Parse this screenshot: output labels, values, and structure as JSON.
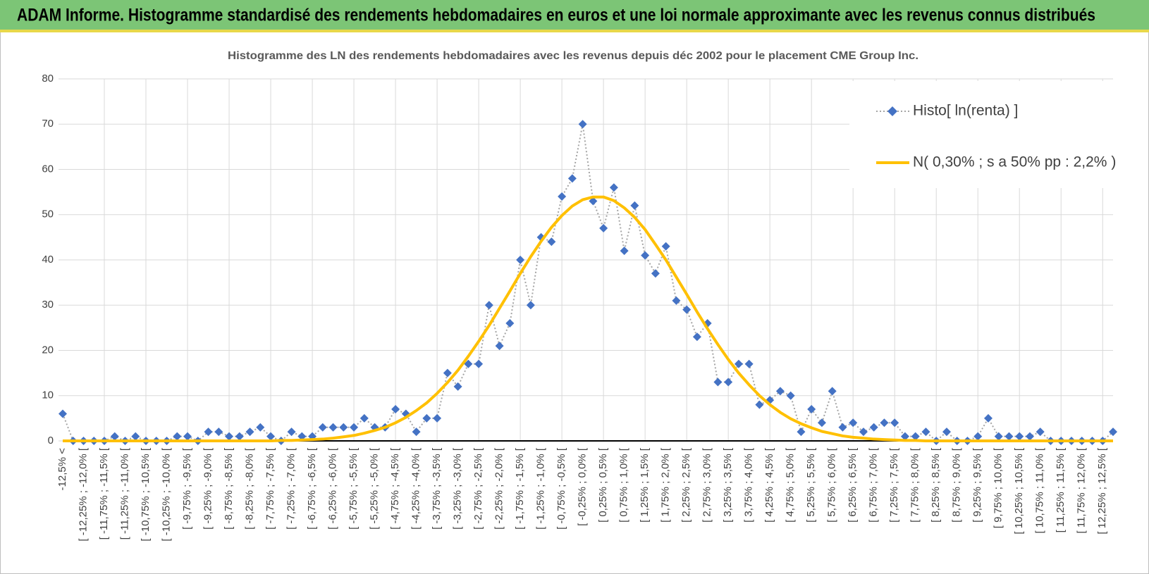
{
  "header": {
    "title": "ADAM Informe. Histogramme standardisé des rendements hebdomadaires en euros et une loi normale approximante avec les revenus connus distribués"
  },
  "chart_data": {
    "type": "line",
    "title": "Histogramme des LN des rendements hebdomadaires avec les revenus depuis déc 2002 pour le placement CME Group Inc.",
    "categories": [
      "-12,5% <",
      null,
      "[ -12,25% ; -12,0% [",
      null,
      "[ -11,75% ; -11,5% [",
      null,
      "[ -11,25% ; -11,0% [",
      null,
      "[ -10,75% ; -10,5% [",
      null,
      "[ -10,25% ; -10,0% [",
      null,
      "[ -9,75% ; -9,5% [",
      null,
      "[ -9,25% ; -9,0% [",
      null,
      "[ -8,75% ; -8,5% [",
      null,
      "[ -8,25% ; -8,0% [",
      null,
      "[ -7,75% ; -7,5% [",
      null,
      "[ -7,25% ; -7,0% [",
      null,
      "[ -6,75% ; -6,5% [",
      null,
      "[ -6,25% ; -6,0% [",
      null,
      "[ -5,75% ; -5,5% [",
      null,
      "[ -5,25% ; -5,0% [",
      null,
      "[ -4,75% ; -4,5% [",
      null,
      "[ -4,25% ; -4,0% [",
      null,
      "[ -3,75% ; -3,5% [",
      null,
      "[ -3,25% ; -3,0% [",
      null,
      "[ -2,75% ; -2,5% [",
      null,
      "[ -2,25% ; -2,0% [",
      null,
      "[ -1,75% ; -1,5% [",
      null,
      "[ -1,25% ; -1,0% [",
      null,
      "[ -0,75% ; -0,5% [",
      null,
      "[ -0,25% ; 0,0% [",
      null,
      "[ 0,25% ; 0,5% [",
      null,
      "[ 0,75% ; 1,0% [",
      null,
      "[ 1,25% ; 1,5% [",
      null,
      "[ 1,75% ; 2,0% [",
      null,
      "[ 2,25% ; 2,5% [",
      null,
      "[ 2,75% ; 3,0% [",
      null,
      "[ 3,25% ; 3,5% [",
      null,
      "[ 3,75% ; 4,0% [",
      null,
      "[ 4,25% ; 4,5% [",
      null,
      "[ 4,75% ; 5,0% [",
      null,
      "[ 5,25% ; 5,5% [",
      null,
      "[ 5,75% ; 6,0% [",
      null,
      "[ 6,25% ; 6,5% [",
      null,
      "[ 6,75% ; 7,0% [",
      null,
      "[ 7,25% ; 7,5% [",
      null,
      "[ 7,75% ; 8,0% [",
      null,
      "[ 8,25% ; 8,5% [",
      null,
      "[ 8,75% ; 9,0% [",
      null,
      "[ 9,25% ; 9,5% [",
      null,
      "[ 9,75% ; 10,0% [",
      null,
      "[ 10,25% ; 10,5% [",
      null,
      "[ 10,75% ; 11,0% [",
      null,
      "[ 11,25% ; 11,5% [",
      null,
      "[ 11,75% ; 12,0% [",
      null,
      "[ 12,25% ; 12,5% [",
      null
    ],
    "series": [
      {
        "name": "Histo[ ln(renta) ]",
        "color": "#4472c4",
        "line_color": "#a5a5a5",
        "line_style": "dotted",
        "marker": "diamond",
        "values": [
          6,
          0,
          0,
          0,
          0,
          1,
          0,
          1,
          0,
          0,
          0,
          1,
          1,
          0,
          2,
          2,
          1,
          1,
          2,
          3,
          1,
          0,
          2,
          1,
          1,
          3,
          3,
          3,
          3,
          5,
          3,
          3,
          7,
          6,
          2,
          5,
          5,
          15,
          12,
          17,
          17,
          30,
          21,
          26,
          40,
          30,
          45,
          44,
          54,
          58,
          70,
          53,
          47,
          56,
          42,
          52,
          41,
          37,
          43,
          31,
          29,
          23,
          26,
          13,
          13,
          17,
          17,
          8,
          9,
          11,
          10,
          2,
          7,
          4,
          11,
          3,
          4,
          2,
          3,
          4,
          4,
          1,
          1,
          2,
          0,
          2,
          0,
          0,
          1,
          5,
          1,
          1,
          1,
          1,
          2,
          0,
          0,
          0,
          0,
          0,
          0,
          2
        ]
      },
      {
        "name": "N( 0,30% ; s a 50% pp : 2,2% )",
        "color": "#ffc000",
        "line_style": "solid",
        "marker": "none",
        "values": [
          0,
          0,
          0,
          0,
          0,
          0,
          0,
          0,
          0,
          0,
          0,
          0,
          0,
          0,
          0,
          0,
          0,
          0,
          0,
          0,
          0,
          0.1,
          0.1,
          0.2,
          0.3,
          0.4,
          0.6,
          0.9,
          1.2,
          1.7,
          2.3,
          3.0,
          4.0,
          5.2,
          6.7,
          8.4,
          10.5,
          12.9,
          15.6,
          18.7,
          22.0,
          25.5,
          29.3,
          33.1,
          37.0,
          40.7,
          44.1,
          47.2,
          49.8,
          51.9,
          53.3,
          53.9,
          53.9,
          53.1,
          51.5,
          49.4,
          46.7,
          43.4,
          40.0,
          36.2,
          32.4,
          28.5,
          24.8,
          21.3,
          18.0,
          15.0,
          12.4,
          10.0,
          8.0,
          6.3,
          4.9,
          3.8,
          2.9,
          2.1,
          1.6,
          1.1,
          0.8,
          0.6,
          0.4,
          0.3,
          0.2,
          0.1,
          0.1,
          0,
          0,
          0,
          0,
          0,
          0,
          0,
          0,
          0,
          0,
          0,
          0,
          0,
          0,
          0,
          0,
          0,
          0,
          0
        ]
      }
    ],
    "ylim": [
      0,
      80
    ],
    "yticks": [
      0,
      10,
      20,
      30,
      40,
      50,
      60,
      70,
      80
    ],
    "grid": true,
    "legend": "top-right"
  }
}
